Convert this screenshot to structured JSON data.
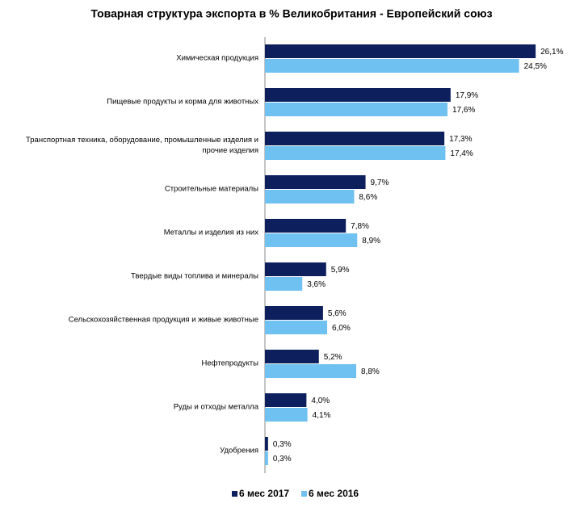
{
  "chart_data": {
    "type": "hbar",
    "title": "Товарная структура  экспорта в % Великобритания - Европейский союз",
    "categories": [
      "Химическая продукция",
      "Пищевые  продукты и корма для животных",
      "Транспортная техника, оборудование, промышленные изделия и прочие изделия",
      "Строительные материалы",
      "Металлы и изделия из них",
      "Твердые виды топлива и минералы",
      "Сельскохозяйственная продукция и живые животные",
      "Нефтепродукты",
      "Руды и отходы металла",
      "Удобрения"
    ],
    "series": [
      {
        "name": "6 мес 2017",
        "color": "#0d1f5c",
        "values": [
          26.1,
          17.9,
          17.3,
          9.7,
          7.8,
          5.9,
          5.6,
          5.2,
          4.0,
          0.3
        ],
        "value_labels": [
          "26,1%",
          "17,9%",
          "17,3%",
          "9,7%",
          "7,8%",
          "5,9%",
          "5,6%",
          "5,2%",
          "4,0%",
          "0,3%"
        ]
      },
      {
        "name": "6 мес 2016",
        "color": "#6ec1f0",
        "values": [
          24.5,
          17.6,
          17.4,
          8.6,
          8.9,
          3.6,
          6.0,
          8.8,
          4.1,
          0.3
        ],
        "value_labels": [
          "24,5%",
          "17,6%",
          "17,4%",
          "8,6%",
          "8,9%",
          "3,6%",
          "6,0%",
          "8,8%",
          "4,1%",
          "0,3%"
        ]
      }
    ],
    "legend": "bottom"
  }
}
